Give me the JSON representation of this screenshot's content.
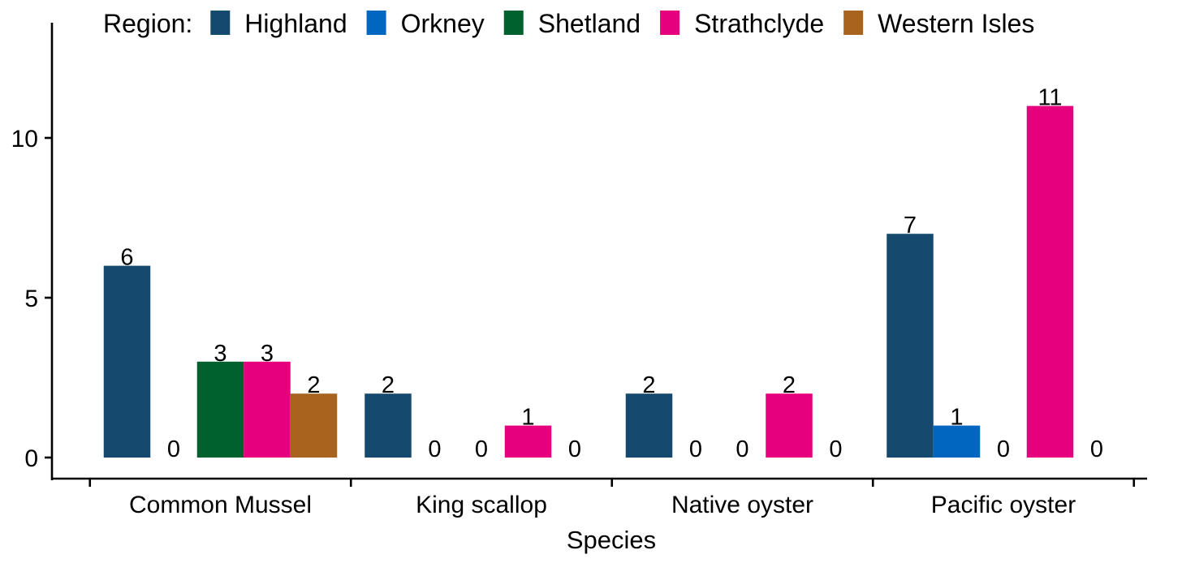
{
  "chart_data": {
    "type": "bar",
    "xlabel": "Species",
    "ylabel": "",
    "categories": [
      "Common Mussel",
      "King scallop",
      "Native oyster",
      "Pacific oyster"
    ],
    "legend_title": "Region:",
    "legend_position": "top",
    "ylim": [
      0,
      13
    ],
    "yticks": [
      0,
      5,
      10
    ],
    "grid": false,
    "series": [
      {
        "name": "Highland",
        "color": "#154A6E",
        "values": [
          6,
          2,
          2,
          7
        ]
      },
      {
        "name": "Orkney",
        "color": "#0066BF",
        "values": [
          0,
          0,
          0,
          1
        ]
      },
      {
        "name": "Shetland",
        "color": "#00612E",
        "values": [
          3,
          0,
          0,
          0
        ]
      },
      {
        "name": "Strathclyde",
        "color": "#E6007E",
        "values": [
          3,
          1,
          2,
          11
        ]
      },
      {
        "name": "Western Isles",
        "color": "#A8641E",
        "values": [
          2,
          0,
          0,
          0
        ]
      }
    ]
  }
}
